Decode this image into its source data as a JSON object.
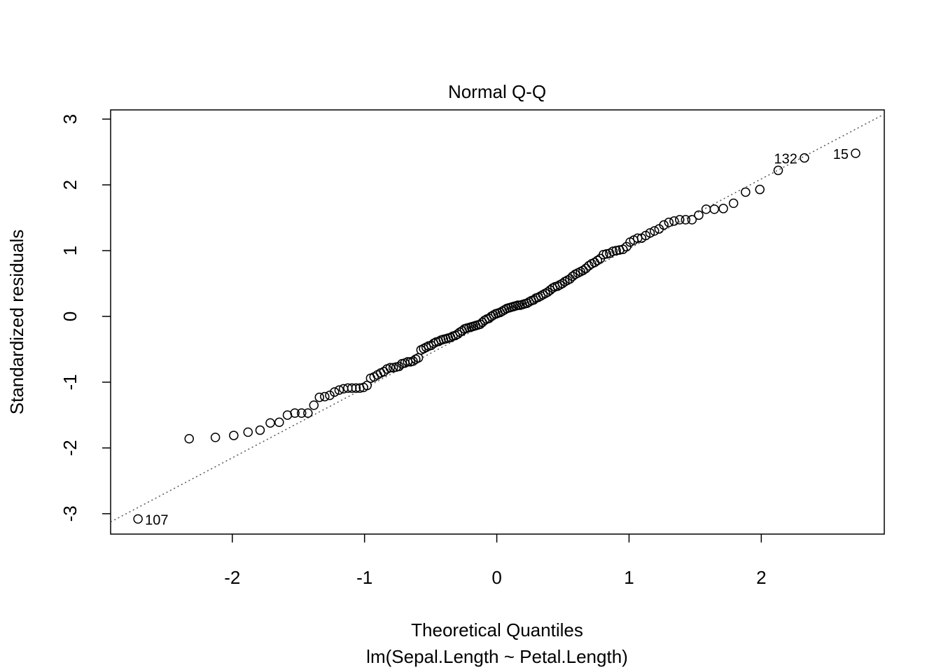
{
  "chart_data": {
    "type": "scatter",
    "title": "Normal Q-Q",
    "xlabel": "Theoretical Quantiles",
    "subtitle": "lm(Sepal.Length ~ Petal.Length)",
    "ylabel": "Standardized residuals",
    "x": [
      -2.713,
      -2.326,
      -2.128,
      -1.989,
      -1.881,
      -1.79,
      -1.713,
      -1.645,
      -1.583,
      -1.527,
      -1.476,
      -1.428,
      -1.383,
      -1.341,
      -1.301,
      -1.263,
      -1.227,
      -1.192,
      -1.159,
      -1.126,
      -1.095,
      -1.065,
      -1.036,
      -1.008,
      -0.981,
      -0.954,
      -0.928,
      -0.903,
      -0.878,
      -0.854,
      -0.83,
      -0.806,
      -0.783,
      -0.761,
      -0.739,
      -0.717,
      -0.696,
      -0.674,
      -0.653,
      -0.633,
      -0.613,
      -0.593,
      -0.573,
      -0.553,
      -0.534,
      -0.515,
      -0.496,
      -0.477,
      -0.459,
      -0.44,
      -0.422,
      -0.404,
      -0.385,
      -0.367,
      -0.349,
      -0.332,
      -0.314,
      -0.297,
      -0.279,
      -0.262,
      -0.244,
      -0.228,
      -0.21,
      -0.193,
      -0.176,
      -0.16,
      -0.143,
      -0.126,
      -0.109,
      -0.092,
      -0.075,
      -0.059,
      -0.042,
      -0.025,
      -0.008,
      0.008,
      0.025,
      0.042,
      0.059,
      0.075,
      0.092,
      0.109,
      0.126,
      0.143,
      0.16,
      0.176,
      0.193,
      0.21,
      0.228,
      0.244,
      0.262,
      0.279,
      0.297,
      0.314,
      0.332,
      0.349,
      0.367,
      0.385,
      0.404,
      0.422,
      0.44,
      0.459,
      0.477,
      0.496,
      0.515,
      0.534,
      0.553,
      0.573,
      0.593,
      0.613,
      0.633,
      0.653,
      0.674,
      0.696,
      0.717,
      0.739,
      0.761,
      0.783,
      0.806,
      0.83,
      0.854,
      0.878,
      0.903,
      0.928,
      0.954,
      0.981,
      1.008,
      1.036,
      1.065,
      1.095,
      1.126,
      1.159,
      1.192,
      1.227,
      1.263,
      1.301,
      1.341,
      1.383,
      1.428,
      1.476,
      1.527,
      1.583,
      1.645,
      1.713,
      1.79,
      1.881,
      1.989,
      2.128,
      2.326,
      2.713
    ],
    "values": [
      -3.08,
      -1.86,
      -1.84,
      -1.81,
      -1.76,
      -1.73,
      -1.62,
      -1.61,
      -1.5,
      -1.47,
      -1.47,
      -1.47,
      -1.35,
      -1.23,
      -1.22,
      -1.2,
      -1.15,
      -1.12,
      -1.1,
      -1.09,
      -1.09,
      -1.09,
      -1.09,
      -1.08,
      -1.05,
      -0.94,
      -0.92,
      -0.89,
      -0.86,
      -0.84,
      -0.8,
      -0.78,
      -0.78,
      -0.77,
      -0.76,
      -0.72,
      -0.71,
      -0.69,
      -0.69,
      -0.68,
      -0.65,
      -0.63,
      -0.51,
      -0.49,
      -0.47,
      -0.45,
      -0.44,
      -0.41,
      -0.39,
      -0.38,
      -0.36,
      -0.35,
      -0.34,
      -0.33,
      -0.32,
      -0.3,
      -0.29,
      -0.27,
      -0.24,
      -0.22,
      -0.19,
      -0.18,
      -0.17,
      -0.16,
      -0.15,
      -0.14,
      -0.13,
      -0.12,
      -0.09,
      -0.06,
      -0.04,
      -0.03,
      0,
      0.02,
      0.04,
      0.05,
      0.06,
      0.08,
      0.1,
      0.12,
      0.13,
      0.14,
      0.15,
      0.16,
      0.17,
      0.17,
      0.18,
      0.19,
      0.2,
      0.22,
      0.24,
      0.25,
      0.28,
      0.29,
      0.31,
      0.33,
      0.35,
      0.37,
      0.4,
      0.43,
      0.45,
      0.46,
      0.48,
      0.5,
      0.53,
      0.55,
      0.57,
      0.61,
      0.64,
      0.66,
      0.68,
      0.7,
      0.73,
      0.77,
      0.8,
      0.82,
      0.85,
      0.88,
      0.94,
      0.95,
      0.96,
      0.99,
      1,
      1.01,
      1.02,
      1.06,
      1.13,
      1.16,
      1.19,
      1.19,
      1.23,
      1.27,
      1.3,
      1.33,
      1.39,
      1.43,
      1.45,
      1.47,
      1.47,
      1.47,
      1.54,
      1.63,
      1.63,
      1.64,
      1.72,
      1.89,
      1.93,
      2.22,
      2.41,
      2.48
    ],
    "color": "#000000",
    "point_labels": {
      "0": "107",
      "148": "132",
      "149": "15"
    },
    "qqline": {
      "intercept": -0.03,
      "slope": 1.06
    },
    "xlim": [
      -2.92,
      2.93
    ],
    "ylim": [
      -3.31,
      3.14
    ],
    "xticks": [
      -2,
      -1,
      0,
      1,
      2
    ],
    "yticks": [
      -3,
      -2,
      -1,
      0,
      1,
      2,
      3
    ]
  }
}
